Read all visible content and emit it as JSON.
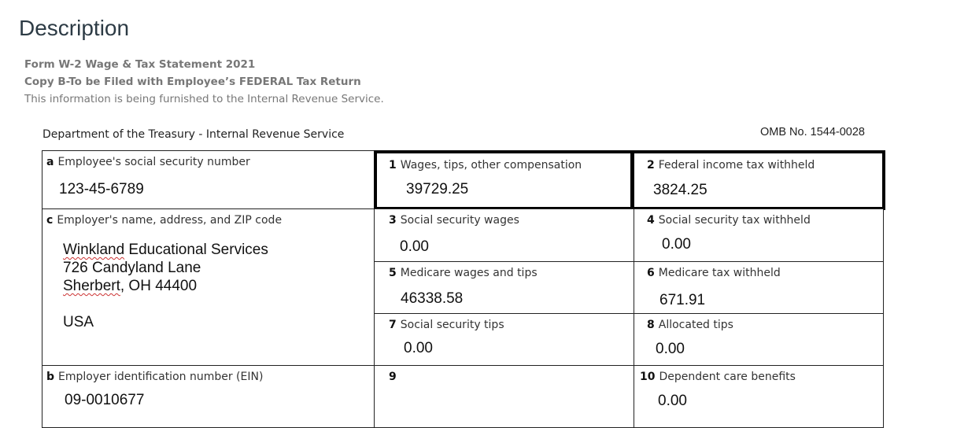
{
  "heading": "Description",
  "intro": {
    "line1": "Form W-2 Wage & Tax Statement 2021",
    "line2": "Copy B-To be Filed with Employee’s FEDERAL Tax Return",
    "line3": "This information is being furnished to the Internal Revenue Service."
  },
  "form": {
    "department": "Department of the Treasury - Internal Revenue Service",
    "omb": "OMB No. 1544-0028",
    "boxes": {
      "a": {
        "code": "a",
        "label": "Employee's social security number",
        "value": "123-45-6789"
      },
      "c": {
        "code": "c",
        "label": "Employer's name, address, and ZIP code",
        "name_first": "Winkland",
        "name_rest": " Educational Services",
        "street": "726 Candyland Lane",
        "city_first": "Sherbert",
        "city_rest": ", OH 44400",
        "country": "USA"
      },
      "b": {
        "code": "b",
        "label": "Employer identification number (EIN)",
        "value": "09-0010677"
      },
      "1": {
        "code": "1",
        "label": "Wages, tips, other compensation",
        "value": "39729.25"
      },
      "2": {
        "code": "2",
        "label": "Federal income tax withheld",
        "value": "3824.25"
      },
      "3": {
        "code": "3",
        "label": "Social security wages",
        "value": "0.00"
      },
      "4": {
        "code": "4",
        "label": "Social security tax withheld",
        "value": "0.00"
      },
      "5": {
        "code": "5",
        "label": "Medicare wages and tips",
        "value": "46338.58"
      },
      "6": {
        "code": "6",
        "label": "Medicare tax withheld",
        "value": "671.91"
      },
      "7": {
        "code": "7",
        "label": "Social security tips",
        "value": "0.00"
      },
      "8": {
        "code": "8",
        "label": "Allocated tips",
        "value": "0.00"
      },
      "9": {
        "code": "9",
        "label": ""
      },
      "10": {
        "code": "10",
        "label": "Dependent care benefits",
        "value": "0.00"
      }
    }
  }
}
